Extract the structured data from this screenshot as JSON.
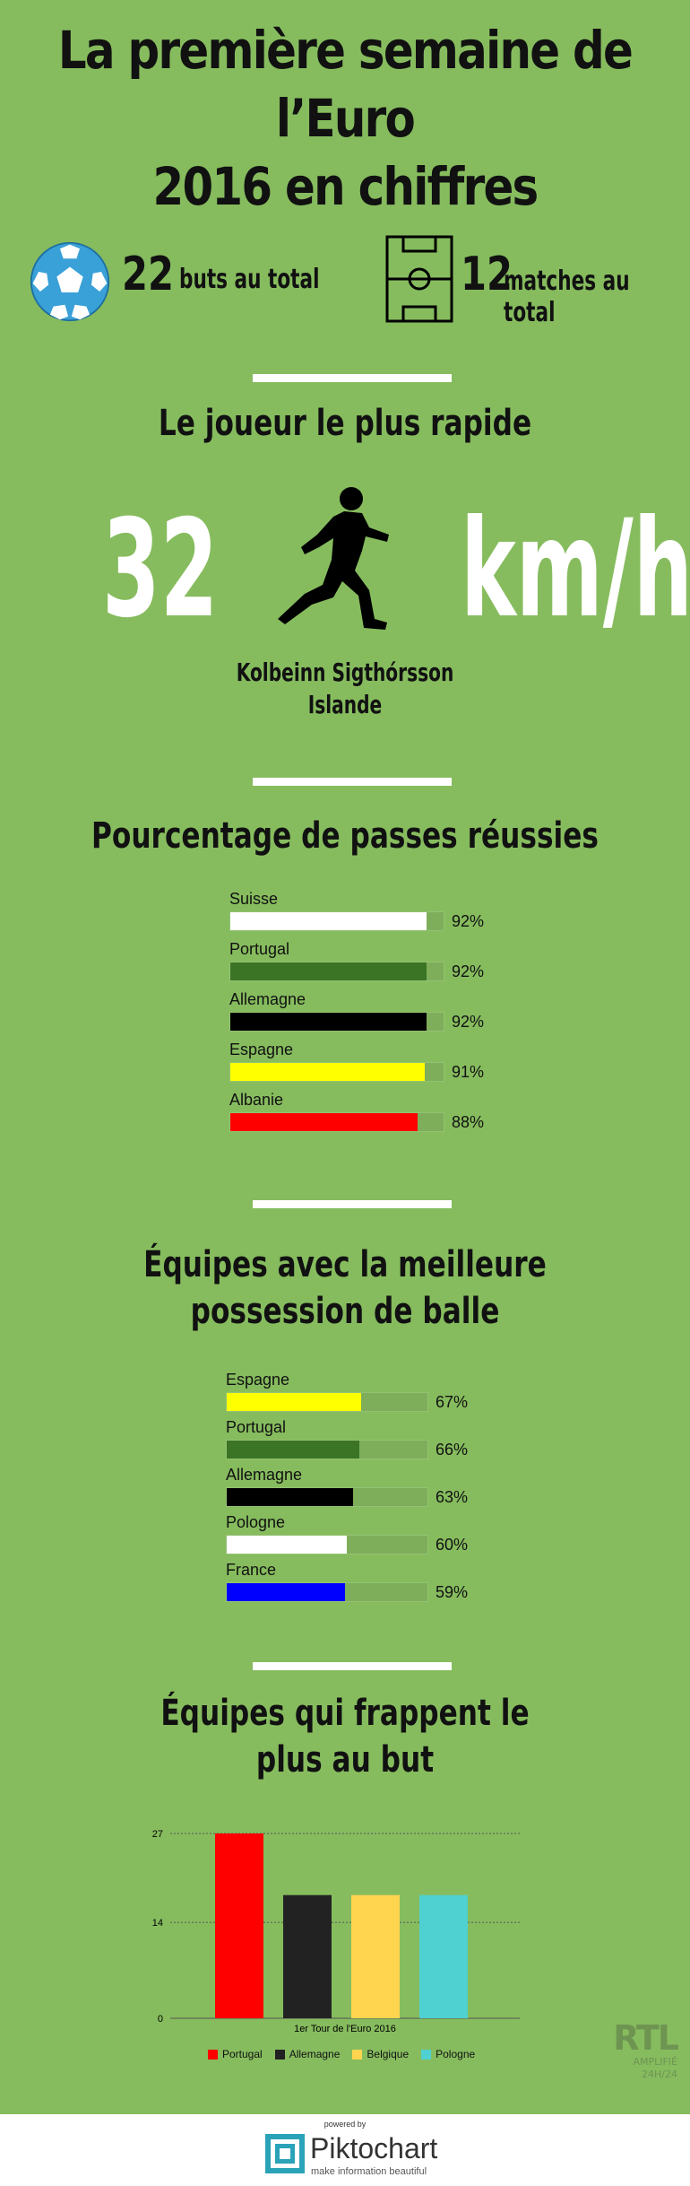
{
  "header": {
    "title_line1": "La première semaine de l’Euro",
    "title_line2": "2016 en chiffres"
  },
  "stats": {
    "goals_number": "22",
    "goals_label": "buts au total",
    "matches_number": "12",
    "matches_label": "matches au total"
  },
  "fastest": {
    "title": "Le joueur le plus rapide",
    "speed_value": "32",
    "speed_unit": "km/h",
    "player_name": "Kolbeinn Sigthórsson",
    "player_country": "Islande"
  },
  "passes": {
    "title": "Pourcentage de passes réussies"
  },
  "possession": {
    "title_line1": "Équipes avec la meilleure",
    "title_line2": "possession de balle"
  },
  "shots": {
    "title_line1": "Équipes qui frappent le",
    "title_line2": "plus au but"
  },
  "chart_data": [
    {
      "type": "bar",
      "orientation": "horizontal",
      "title": "Pourcentage de passes réussies",
      "categories": [
        "Suisse",
        "Portugal",
        "Allemagne",
        "Espagne",
        "Albanie"
      ],
      "values": [
        92,
        92,
        92,
        91,
        88
      ],
      "value_labels": [
        "92%",
        "92%",
        "92%",
        "91%",
        "88%"
      ],
      "colors": [
        "#ffffff",
        "#3a7424",
        "#000000",
        "#ffff00",
        "#ff0000"
      ],
      "xlim": [
        0,
        100
      ]
    },
    {
      "type": "bar",
      "orientation": "horizontal",
      "title": "Équipes avec la meilleure possession de balle",
      "categories": [
        "Espagne",
        "Portugal",
        "Allemagne",
        "Pologne",
        "France"
      ],
      "values": [
        67,
        66,
        63,
        60,
        59
      ],
      "value_labels": [
        "67%",
        "66%",
        "63%",
        "60%",
        "59%"
      ],
      "colors": [
        "#ffff00",
        "#3a7424",
        "#000000",
        "#ffffff",
        "#0000ff"
      ],
      "xlim": [
        0,
        100
      ]
    },
    {
      "type": "bar",
      "title": "Équipes qui frappent le plus au but",
      "categories": [
        "1er Tour de l'Euro 2016"
      ],
      "xlabel": "1er Tour de l'Euro 2016",
      "series": [
        {
          "name": "Portugal",
          "values": [
            27
          ],
          "color": "#ff0000"
        },
        {
          "name": "Allemagne",
          "values": [
            18
          ],
          "color": "#222222"
        },
        {
          "name": "Belgique",
          "values": [
            18
          ],
          "color": "#ffd54f"
        },
        {
          "name": "Pologne",
          "values": [
            18
          ],
          "color": "#4fd1d1"
        }
      ],
      "ylim": [
        0,
        27
      ],
      "yticks": [
        "0",
        "14",
        "27"
      ],
      "grid": true,
      "legend": "bottom"
    }
  ],
  "watermark": {
    "brand": "RTL",
    "line1": "AMPLIFIÉ",
    "line2": "24H/24"
  },
  "footer": {
    "powered_by": "powered by",
    "brand": "Piktochart",
    "tagline": "make information beautiful"
  }
}
